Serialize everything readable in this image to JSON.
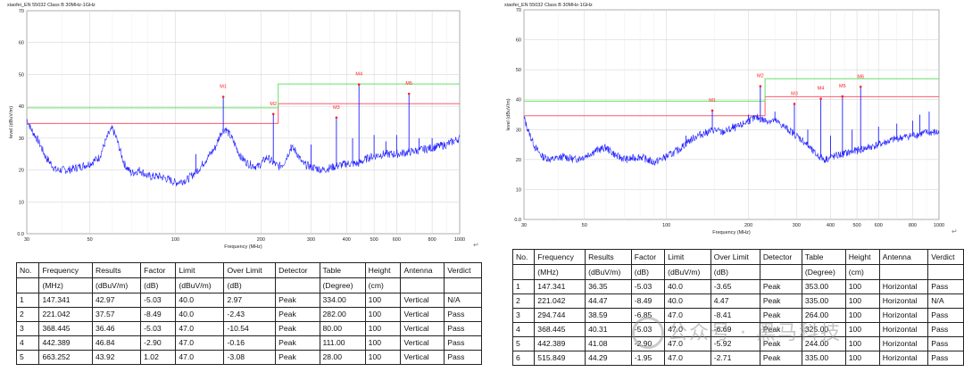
{
  "colors": {
    "trace": "#2020ff",
    "limit_qp": "#ff5a6e",
    "limit_green": "#66e066",
    "marker": "#ff2020",
    "grid": "#d8d8d8"
  },
  "left": {
    "chart_data": {
      "type": "line",
      "title": "xiaofei_EN 55032 Class B 30MHz-1GHz",
      "xlabel": "Frequency (MHz)",
      "ylabel": "level (dBuV/m)",
      "xscale": "log",
      "xlim": [
        30,
        1000
      ],
      "ylim": [
        0,
        70
      ],
      "x_ticks": [
        "30",
        "50",
        "100",
        "200",
        "300",
        "400",
        "500",
        "600",
        "800",
        "1000"
      ],
      "y_ticks": [
        "0.0",
        "10",
        "20",
        "30",
        "40",
        "50",
        "60",
        "70"
      ],
      "limit_lines": [
        {
          "name": "limit",
          "color": "red",
          "points": [
            [
              30,
              34.6
            ],
            [
              230,
              34.6
            ],
            [
              230,
              40.8
            ],
            [
              1000,
              40.8
            ]
          ]
        },
        {
          "name": "limit2",
          "color": "green",
          "points": [
            [
              30,
              39.5
            ],
            [
              230,
              39.5
            ],
            [
              230,
              47
            ],
            [
              1000,
              47
            ]
          ]
        }
      ],
      "markers": [
        {
          "label": "M1",
          "freq": 147.341,
          "level": 42.97
        },
        {
          "label": "M2",
          "freq": 221.042,
          "level": 37.57
        },
        {
          "label": "M3",
          "freq": 368.445,
          "level": 36.46
        },
        {
          "label": "M4",
          "freq": 442.389,
          "level": 46.84
        },
        {
          "label": "M5",
          "freq": 663.252,
          "level": 43.92
        }
      ],
      "trace": [
        [
          30,
          36
        ],
        [
          31,
          33
        ],
        [
          33,
          29
        ],
        [
          35,
          24
        ],
        [
          38,
          20
        ],
        [
          42,
          20
        ],
        [
          46,
          21
        ],
        [
          50,
          22
        ],
        [
          54,
          24
        ],
        [
          58,
          31
        ],
        [
          60,
          33
        ],
        [
          62,
          30
        ],
        [
          66,
          22
        ],
        [
          70,
          19
        ],
        [
          75,
          20
        ],
        [
          80,
          18
        ],
        [
          88,
          18
        ],
        [
          95,
          17
        ],
        [
          100,
          16
        ],
        [
          110,
          17
        ],
        [
          120,
          20
        ],
        [
          130,
          24
        ],
        [
          138,
          27
        ],
        [
          145,
          32
        ],
        [
          150,
          33
        ],
        [
          158,
          30
        ],
        [
          170,
          24
        ],
        [
          180,
          22
        ],
        [
          195,
          21
        ],
        [
          210,
          24
        ],
        [
          230,
          21
        ],
        [
          240,
          22
        ],
        [
          255,
          27
        ],
        [
          265,
          26
        ],
        [
          280,
          22
        ],
        [
          300,
          21
        ],
        [
          330,
          20
        ],
        [
          360,
          21
        ],
        [
          400,
          22
        ],
        [
          440,
          22
        ],
        [
          480,
          24
        ],
        [
          540,
          25
        ],
        [
          600,
          25
        ],
        [
          700,
          26
        ],
        [
          800,
          27
        ],
        [
          900,
          28
        ],
        [
          1000,
          30
        ]
      ],
      "spikes": [
        [
          60,
          33
        ],
        [
          118,
          25
        ],
        [
          147.341,
          42.97
        ],
        [
          165,
          26
        ],
        [
          221.042,
          37.57
        ],
        [
          255,
          28
        ],
        [
          300,
          28
        ],
        [
          368.445,
          36.46
        ],
        [
          420,
          30
        ],
        [
          442.389,
          46.84
        ],
        [
          500,
          31
        ],
        [
          550,
          29
        ],
        [
          600,
          31
        ],
        [
          663.252,
          43.92
        ],
        [
          720,
          30
        ],
        [
          800,
          30
        ]
      ]
    },
    "table": {
      "header1": [
        "No.",
        "Frequency",
        "Results",
        "Factor",
        "Limit",
        "Over Limit",
        "Detector",
        "Table",
        "Height",
        "Antenna",
        "Verdict"
      ],
      "header2": [
        "",
        "(MHz)",
        "(dBuV/m)",
        "(dB)",
        "(dBuV/m)",
        "(dB)",
        "",
        "(Degree)",
        "(cm)",
        "",
        ""
      ],
      "rows": [
        [
          "1",
          "147.341",
          "42.97",
          "-5.03",
          "40.0",
          "2.97",
          "Peak",
          "334.00",
          "100",
          "Vertical",
          "N/A"
        ],
        [
          "2",
          "221.042",
          "37.57",
          "-8.49",
          "40.0",
          "-2.43",
          "Peak",
          "282.00",
          "100",
          "Vertical",
          "Pass"
        ],
        [
          "3",
          "368.445",
          "36.46",
          "-5.03",
          "47.0",
          "-10.54",
          "Peak",
          "80.00",
          "100",
          "Vertical",
          "Pass"
        ],
        [
          "4",
          "442.389",
          "46.84",
          "-2.90",
          "47.0",
          "-0.16",
          "Peak",
          "111.00",
          "100",
          "Vertical",
          "Pass"
        ],
        [
          "5",
          "663.252",
          "43.92",
          "1.02",
          "47.0",
          "-3.08",
          "Peak",
          "28.00",
          "100",
          "Vertical",
          "Pass"
        ]
      ]
    }
  },
  "right": {
    "chart_data": {
      "type": "line",
      "title": "xiaofei_EN 55032 Class B 30MHz-1GHz",
      "xlabel": "Frequency (MHz)",
      "ylabel": "level (dBuV/m)",
      "xscale": "log",
      "xlim": [
        30,
        1000
      ],
      "ylim": [
        0,
        70
      ],
      "x_ticks": [
        "30",
        "50",
        "100",
        "200",
        "300",
        "400",
        "500",
        "600",
        "800",
        "1000"
      ],
      "y_ticks": [
        "0.0",
        "10",
        "20",
        "30",
        "40",
        "50",
        "60",
        "70"
      ],
      "limit_lines": [
        {
          "name": "limit",
          "color": "red",
          "points": [
            [
              30,
              34.6
            ],
            [
              230,
              34.6
            ],
            [
              230,
              41
            ],
            [
              1000,
              41
            ]
          ]
        },
        {
          "name": "limit2",
          "color": "green",
          "points": [
            [
              30,
              39.5
            ],
            [
              230,
              39.5
            ],
            [
              230,
              47
            ],
            [
              1000,
              47
            ]
          ]
        }
      ],
      "markers": [
        {
          "label": "M1",
          "freq": 147.341,
          "level": 36.35
        },
        {
          "label": "M2",
          "freq": 221.042,
          "level": 44.47
        },
        {
          "label": "M3",
          "freq": 294.744,
          "level": 38.59
        },
        {
          "label": "M4",
          "freq": 368.445,
          "level": 40.31
        },
        {
          "label": "M5",
          "freq": 442.389,
          "level": 41.08
        },
        {
          "label": "M6",
          "freq": 515.849,
          "level": 44.29
        }
      ],
      "trace": [
        [
          30,
          34
        ],
        [
          31,
          30
        ],
        [
          33,
          24
        ],
        [
          35,
          21
        ],
        [
          38,
          20
        ],
        [
          42,
          21
        ],
        [
          46,
          20
        ],
        [
          50,
          21
        ],
        [
          55,
          23
        ],
        [
          60,
          24
        ],
        [
          66,
          21
        ],
        [
          72,
          20
        ],
        [
          80,
          21
        ],
        [
          90,
          19
        ],
        [
          100,
          21
        ],
        [
          110,
          23
        ],
        [
          120,
          26
        ],
        [
          130,
          28
        ],
        [
          140,
          29
        ],
        [
          150,
          30
        ],
        [
          160,
          29
        ],
        [
          170,
          30
        ],
        [
          185,
          31
        ],
        [
          200,
          33
        ],
        [
          215,
          34
        ],
        [
          230,
          33
        ],
        [
          250,
          33
        ],
        [
          270,
          31
        ],
        [
          290,
          29
        ],
        [
          320,
          26
        ],
        [
          350,
          22
        ],
        [
          380,
          20
        ],
        [
          410,
          21
        ],
        [
          450,
          22
        ],
        [
          500,
          23
        ],
        [
          550,
          24
        ],
        [
          600,
          25
        ],
        [
          700,
          27
        ],
        [
          800,
          28
        ],
        [
          900,
          29
        ],
        [
          1000,
          29
        ]
      ],
      "spikes": [
        [
          118,
          28
        ],
        [
          147.341,
          36.35
        ],
        [
          175,
          32
        ],
        [
          200,
          35
        ],
        [
          221.042,
          44.47
        ],
        [
          250,
          36
        ],
        [
          294.744,
          38.59
        ],
        [
          330,
          30
        ],
        [
          368.445,
          40.31
        ],
        [
          400,
          28
        ],
        [
          442.389,
          41.08
        ],
        [
          480,
          30
        ],
        [
          515.849,
          44.29
        ],
        [
          600,
          31
        ],
        [
          700,
          32
        ],
        [
          800,
          33
        ],
        [
          850,
          35
        ],
        [
          920,
          36
        ]
      ]
    },
    "table": {
      "header1": [
        "No.",
        "Frequency",
        "Results",
        "Factor",
        "Limit",
        "Over Limit",
        "Detector",
        "Table",
        "Height",
        "Antenna",
        "Verdict"
      ],
      "header2": [
        "",
        "(MHz)",
        "(dBuV/m)",
        "(dB)",
        "(dBuV/m)",
        "(dB)",
        "",
        "(Degree)",
        "(cm)",
        "",
        ""
      ],
      "rows": [
        [
          "1",
          "147.341",
          "36.35",
          "-5.03",
          "40.0",
          "-3.65",
          "Peak",
          "353.00",
          "100",
          "Horizontal",
          "Pass"
        ],
        [
          "2",
          "221.042",
          "44.47",
          "-8.49",
          "40.0",
          "4.47",
          "Peak",
          "335.00",
          "100",
          "Horizontal",
          "N/A"
        ],
        [
          "3",
          "294.744",
          "38.59",
          "-6.85",
          "47.0",
          "-8.41",
          "Peak",
          "264.00",
          "100",
          "Horizontal",
          "Pass"
        ],
        [
          "4",
          "368.445",
          "40.31",
          "-5.03",
          "47.0",
          "-6.69",
          "Peak",
          "325.00",
          "100",
          "Horizontal",
          "Pass"
        ],
        [
          "5",
          "442.389",
          "41.08",
          "-2.90",
          "47.0",
          "-5.92",
          "Peak",
          "244.00",
          "100",
          "Horizontal",
          "Pass"
        ],
        [
          "6",
          "515.849",
          "44.29",
          "-1.95",
          "47.0",
          "-2.71",
          "Peak",
          "335.00",
          "100",
          "Horizontal",
          "Pass"
        ]
      ]
    },
    "watermark": "公众号 · 黑马科技"
  }
}
